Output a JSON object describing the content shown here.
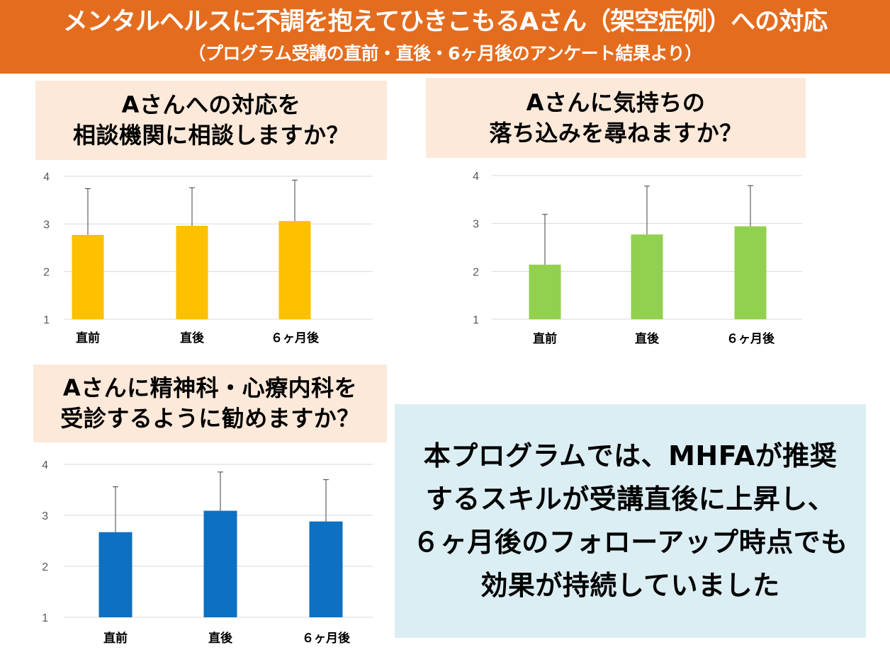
{
  "header": {
    "title": "メンタルヘルスに不調を抱えてひきこもるAさん（架空症例）への対応",
    "subtitle": "（プログラム受講の直前・直後・6ヶ月後のアンケート結果より）"
  },
  "questions": [
    {
      "line1": "Aさんへの対応を",
      "line2": "相談機関に相談しますか？"
    },
    {
      "line1": "Aさんに気持ちの",
      "line2": "落ち込みを尋ねますか？"
    },
    {
      "line1": "Aさんに精神科・心療内科を",
      "line2": "受診するように勧めますか？"
    }
  ],
  "chart_data": [
    {
      "type": "bar",
      "categories": [
        "直前",
        "直後",
        "６ヶ月後"
      ],
      "values": [
        2.77,
        2.96,
        3.06
      ],
      "error_upper": [
        3.74,
        3.76,
        3.92
      ],
      "ylim": [
        1,
        4
      ],
      "yticks": [
        "1",
        "2",
        "3",
        "4"
      ],
      "grid": true,
      "color": "#ffc000"
    },
    {
      "type": "bar",
      "categories": [
        "直前",
        "直後",
        "６ヶ月後"
      ],
      "values": [
        2.14,
        2.77,
        2.94
      ],
      "error_upper": [
        3.19,
        3.78,
        3.79
      ],
      "ylim": [
        1,
        4
      ],
      "yticks": [
        "1",
        "2",
        "3",
        "4"
      ],
      "grid": true,
      "color": "#92d050"
    },
    {
      "type": "bar",
      "categories": [
        "直前",
        "直後",
        "６ヶ月後"
      ],
      "values": [
        2.67,
        3.09,
        2.88
      ],
      "error_upper": [
        3.56,
        3.85,
        3.7
      ],
      "ylim": [
        1,
        4
      ],
      "yticks": [
        "1",
        "2",
        "3",
        "4"
      ],
      "grid": true,
      "color": "#0e70c0"
    }
  ],
  "summary": {
    "lines": [
      "本プログラムでは、MHFAが推奨",
      "するスキルが受講直後に上昇し、",
      "６ヶ月後のフォローアップ時点でも",
      "効果が持続していました"
    ]
  }
}
